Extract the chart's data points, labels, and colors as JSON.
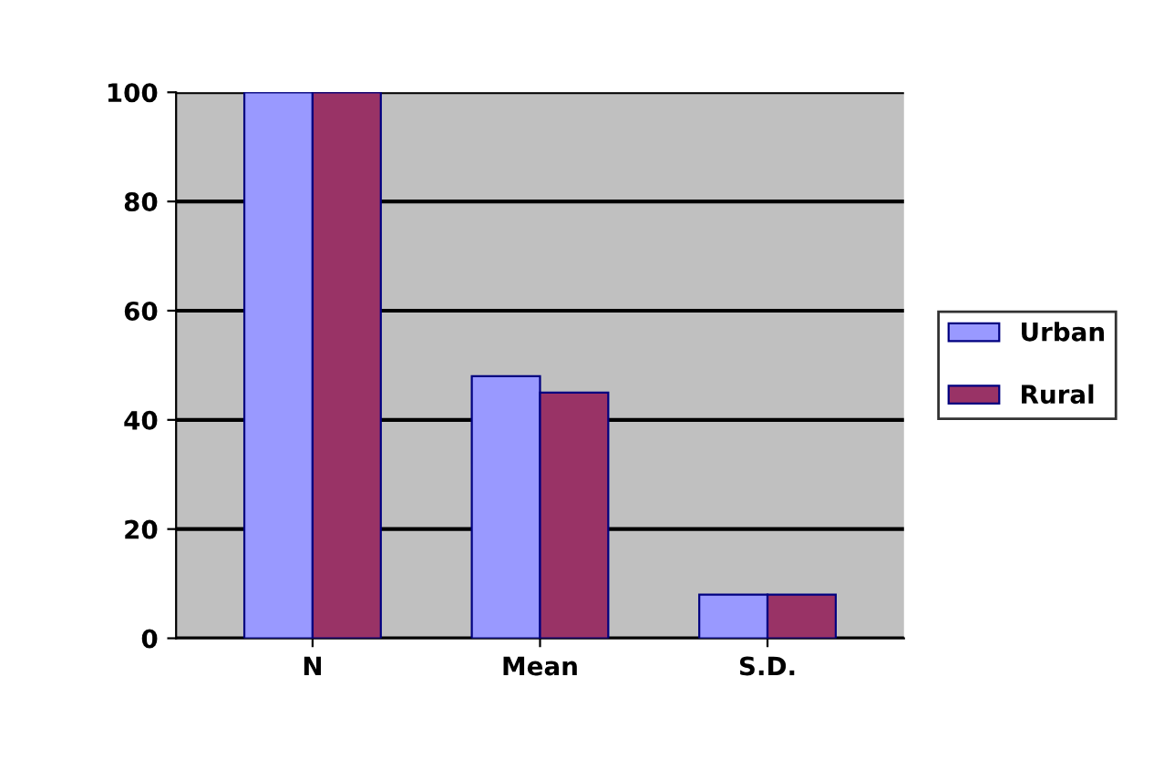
{
  "chart_data": {
    "type": "bar",
    "categories": [
      "N",
      "Mean",
      "S.D."
    ],
    "series": [
      {
        "name": "Urban",
        "color": "#9999ff",
        "values": [
          100,
          48,
          8
        ]
      },
      {
        "name": "Rural",
        "color": "#993366",
        "values": [
          100,
          45,
          8
        ]
      }
    ],
    "ylim": [
      0,
      100
    ],
    "yticks": [
      0,
      20,
      40,
      60,
      80,
      100
    ],
    "grid": "y",
    "legend": "right"
  }
}
